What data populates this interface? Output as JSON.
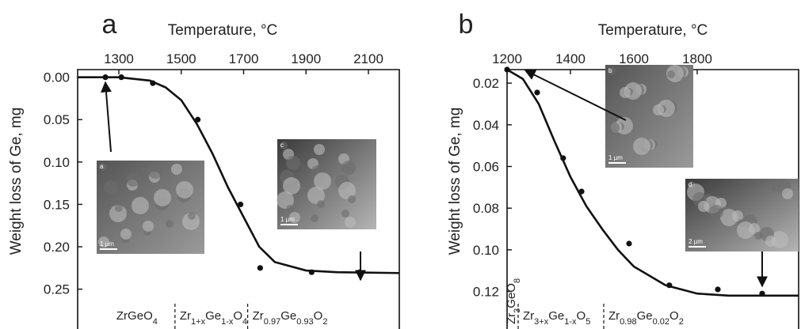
{
  "chart_data": [
    {
      "type": "scatter",
      "panel": "a",
      "xlabel": "Temperature, °C",
      "ylabel": "Weight loss of Ge, mg",
      "xlim": [
        1168,
        2199
      ],
      "xticks": [
        1300,
        1500,
        1700,
        1900,
        2100
      ],
      "ylim": [
        -0.009,
        0.297
      ],
      "y_inverted": true,
      "yticks": [
        {
          "value": 0,
          "label": "0.00"
        },
        0.05,
        {
          "value": 0.1,
          "label": "0.10"
        },
        0.15,
        {
          "value": 0.2,
          "label": "0.20"
        },
        0.25
      ],
      "series": [
        {
          "type": "scatter",
          "color": "#111",
          "x": [
            1257,
            1308,
            1409,
            1553,
            1690,
            1753,
            1918,
            2072
          ],
          "values": [
            0,
            0,
            0.007,
            0.05,
            0.15,
            0.225,
            0.23,
            0.23
          ]
        },
        {
          "type": "line",
          "color": "#111",
          "x": [
            1168,
            1300,
            1400,
            1450,
            1500,
            1550,
            1600,
            1650,
            1700,
            1750,
            1800,
            1900,
            2000,
            2199
          ],
          "values": [
            0,
            0,
            0.004,
            0.012,
            0.027,
            0.055,
            0.09,
            0.13,
            0.165,
            0.2,
            0.218,
            0.228,
            0.23,
            0.231
          ]
        }
      ],
      "boundaries": [
        1480,
        1713
      ],
      "regions": [
        [
          "Zr",
          "",
          "Ge",
          "",
          "O",
          "4"
        ],
        [
          "Zr",
          "1+x",
          "Ge",
          "1-x",
          "O",
          "4"
        ],
        [
          "Zr",
          "0.97",
          "Ge",
          "0.93",
          "O",
          "2"
        ]
      ],
      "insets": [
        {
          "label": "a",
          "scale": "1 µm"
        },
        {
          "label": "c",
          "scale": "1 µm"
        }
      ]
    },
    {
      "type": "scatter",
      "panel": "b",
      "xlabel": "Temperature, °C",
      "ylabel": "Weight loss of Ge, mg",
      "xlim": [
        1200,
        2120
      ],
      "xticks": [
        1200,
        1400,
        1600,
        1800
      ],
      "ylim": [
        0.0135,
        0.138
      ],
      "y_inverted": true,
      "yticks": [
        0.02,
        0.04,
        0.06,
        0.08,
        {
          "value": 0.1,
          "label": "0.10"
        },
        0.12
      ],
      "series": [
        {
          "type": "scatter",
          "color": "#111",
          "x": [
            1200,
            1295,
            1377,
            1435,
            1585,
            1712,
            1865,
            2005
          ],
          "values": [
            0.0135,
            0.0245,
            0.056,
            0.072,
            0.097,
            0.117,
            0.119,
            0.121
          ]
        },
        {
          "type": "line",
          "color": "#111",
          "x": [
            1200,
            1250,
            1300,
            1350,
            1400,
            1450,
            1500,
            1550,
            1600,
            1700,
            1800,
            1900,
            2120
          ],
          "values": [
            0.0135,
            0.018,
            0.03,
            0.048,
            0.065,
            0.079,
            0.09,
            0.1,
            0.108,
            0.117,
            0.121,
            0.122,
            0.122
          ]
        }
      ],
      "boundaries": [
        1235,
        1505
      ],
      "regions": [
        [
          "Zr",
          "3",
          "GeO",
          "8"
        ],
        [
          "Zr",
          "3+x",
          "Ge",
          "1-x",
          "O",
          "5"
        ],
        [
          "Zr",
          "0.98",
          "Ge",
          "0.02",
          "O",
          "2"
        ]
      ],
      "insets": [
        {
          "label": "b",
          "scale": "1 µm"
        },
        {
          "label": "d",
          "scale": "2 µm"
        }
      ]
    }
  ]
}
